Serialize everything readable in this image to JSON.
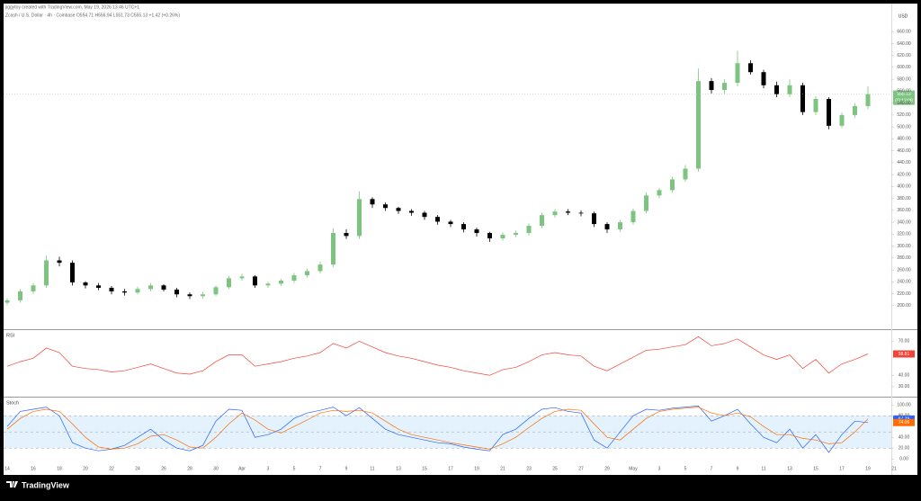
{
  "header": {
    "credit": "jiggytoy created with TradingView.com, May 19, 2026 13:46 UTC+1",
    "legend": "Zcash / U.S. Dollar · 4h · Coinbase  O554.71 H556.94 L551.73 C555.13 +1.42 (+0.26%)",
    "currency": "USD",
    "countdown": "03:13:08",
    "brand": "TradingView"
  },
  "chart_data": [
    {
      "type": "candlestick",
      "up_color": "#7cc47f",
      "down_color": "#000000",
      "last_line_color": "#bdbdbd",
      "ylim": [
        162,
        695
      ],
      "yticks": [
        {
          "value": 200,
          "label": "200.00"
        },
        {
          "value": 220,
          "label": "220.00"
        },
        {
          "value": 240,
          "label": "240.00"
        },
        {
          "value": 260,
          "label": "260.00"
        },
        {
          "value": 280,
          "label": "280.00"
        },
        {
          "value": 300,
          "label": "300.00"
        },
        {
          "value": 320,
          "label": "320.00"
        },
        {
          "value": 340,
          "label": "340.00"
        },
        {
          "value": 360,
          "label": "360.00"
        },
        {
          "value": 380,
          "label": "380.00"
        },
        {
          "value": 400,
          "label": "400.00"
        },
        {
          "value": 420,
          "label": "420.00"
        },
        {
          "value": 440,
          "label": "440.00"
        },
        {
          "value": 460,
          "label": "460.00"
        },
        {
          "value": 480,
          "label": "480.00"
        },
        {
          "value": 500,
          "label": "500.00"
        },
        {
          "value": 520,
          "label": "520.00"
        },
        {
          "value": 540,
          "label": "540.00"
        },
        {
          "value": 560,
          "label": "560.00"
        },
        {
          "value": 580,
          "label": "580.00"
        },
        {
          "value": 600,
          "label": "600.00"
        },
        {
          "value": 620,
          "label": "620.00"
        },
        {
          "value": 640,
          "label": "640.00"
        },
        {
          "value": 660,
          "label": "660.00"
        }
      ],
      "open": [
        205,
        209,
        224,
        234,
        276,
        272,
        239,
        234,
        230,
        224,
        222,
        228,
        234,
        227,
        219,
        216,
        219,
        231,
        246,
        249,
        234,
        237,
        242,
        251,
        258,
        269,
        322,
        317,
        379,
        370,
        364,
        359,
        356,
        349,
        341,
        337,
        328,
        322,
        313,
        319,
        322,
        334,
        352,
        358,
        356,
        355,
        337,
        328,
        340,
        359,
        385,
        394,
        412,
        430,
        577,
        562,
        574,
        607,
        592,
        570,
        555,
        570,
        525,
        547,
        502,
        520,
        535
      ],
      "high": [
        212,
        228,
        238,
        284,
        282,
        276,
        241,
        238,
        233,
        228,
        232,
        238,
        236,
        230,
        222,
        223,
        234,
        250,
        254,
        251,
        240,
        245,
        255,
        262,
        274,
        330,
        328,
        392,
        382,
        373,
        366,
        362,
        359,
        352,
        344,
        340,
        331,
        324,
        323,
        326,
        338,
        356,
        362,
        362,
        360,
        358,
        340,
        344,
        363,
        390,
        398,
        416,
        436,
        598,
        582,
        580,
        628,
        612,
        596,
        576,
        580,
        574,
        552,
        550,
        524,
        540,
        568
      ],
      "low": [
        201,
        205,
        220,
        230,
        266,
        234,
        229,
        226,
        219,
        217,
        219,
        224,
        224,
        214,
        211,
        212,
        216,
        228,
        242,
        230,
        230,
        233,
        238,
        247,
        254,
        265,
        312,
        312,
        364,
        359,
        354,
        351,
        344,
        336,
        332,
        323,
        316,
        307,
        309,
        315,
        318,
        330,
        348,
        352,
        350,
        332,
        322,
        324,
        336,
        355,
        380,
        390,
        408,
        425,
        556,
        555,
        568,
        588,
        565,
        550,
        550,
        520,
        520,
        496,
        498,
        515,
        530
      ],
      "close": [
        209,
        224,
        234,
        276,
        272,
        239,
        234,
        230,
        224,
        222,
        228,
        234,
        227,
        219,
        216,
        219,
        231,
        246,
        249,
        234,
        237,
        242,
        251,
        258,
        269,
        322,
        317,
        379,
        370,
        364,
        359,
        356,
        349,
        341,
        337,
        328,
        322,
        313,
        319,
        322,
        334,
        352,
        358,
        356,
        355,
        337,
        328,
        340,
        359,
        385,
        394,
        412,
        430,
        577,
        562,
        574,
        607,
        592,
        570,
        555,
        570,
        525,
        547,
        502,
        520,
        535,
        555.13
      ]
    },
    {
      "type": "line",
      "title": "RSI",
      "ylim": [
        22,
        79
      ],
      "yticks": [
        {
          "value": 30,
          "label": "30.00"
        },
        {
          "value": 40,
          "label": "40.00"
        },
        {
          "value": 70,
          "label": "70.00"
        }
      ],
      "series": [
        {
          "name": "RSI",
          "color": "#f44336",
          "values": [
            48,
            52,
            55,
            64,
            60,
            48,
            46,
            45,
            43,
            44,
            47,
            50,
            46,
            42,
            41,
            44,
            52,
            58,
            58,
            48,
            50,
            52,
            55,
            57,
            60,
            68,
            64,
            70,
            65,
            60,
            57,
            55,
            52,
            49,
            47,
            44,
            42,
            40,
            45,
            47,
            52,
            58,
            60,
            58,
            57,
            48,
            44,
            50,
            56,
            62,
            63,
            65,
            67,
            74,
            66,
            68,
            72,
            65,
            58,
            54,
            58,
            46,
            54,
            42,
            50,
            54,
            58.81
          ]
        }
      ]
    },
    {
      "type": "line",
      "title": "Stoch",
      "ylim": [
        -8,
        112
      ],
      "band": [
        20,
        80
      ],
      "band_color": "#e3f2fd",
      "hlines": [
        20,
        50,
        80
      ],
      "yticks": [
        {
          "value": 0,
          "label": "0.00"
        },
        {
          "value": 20,
          "label": "20.00"
        },
        {
          "value": 40,
          "label": "40.00"
        },
        {
          "value": 80,
          "label": "80.00"
        },
        {
          "value": 100,
          "label": "100.00"
        }
      ],
      "xticks": [
        "14",
        "16",
        "18",
        "20",
        "22",
        "24",
        "26",
        "28",
        "30",
        "Apr",
        "3",
        "5",
        "7",
        "9",
        "11",
        "13",
        "15",
        "17",
        "19",
        "21",
        "23",
        "25",
        "27",
        "29",
        "May",
        "3",
        "5",
        "7",
        "9",
        "11",
        "13",
        "15",
        "17",
        "19",
        "21"
      ],
      "series": [
        {
          "name": "%K",
          "color": "#2962ff",
          "values": [
            60,
            88,
            92,
            96,
            80,
            30,
            20,
            15,
            18,
            25,
            40,
            55,
            35,
            20,
            15,
            25,
            70,
            92,
            90,
            40,
            45,
            55,
            75,
            85,
            90,
            96,
            80,
            95,
            75,
            55,
            45,
            40,
            35,
            30,
            28,
            22,
            18,
            15,
            45,
            55,
            75,
            92,
            95,
            88,
            85,
            35,
            20,
            50,
            80,
            92,
            90,
            94,
            96,
            98,
            70,
            80,
            92,
            65,
            40,
            30,
            55,
            20,
            45,
            12,
            45,
            70,
            67.29
          ]
        },
        {
          "name": "%D",
          "color": "#ff6d00",
          "values": [
            55,
            75,
            88,
            92,
            88,
            65,
            40,
            22,
            18,
            20,
            28,
            42,
            45,
            35,
            22,
            20,
            40,
            65,
            85,
            72,
            55,
            48,
            60,
            72,
            85,
            90,
            88,
            90,
            85,
            70,
            55,
            45,
            40,
            35,
            30,
            26,
            22,
            18,
            28,
            40,
            58,
            75,
            88,
            92,
            90,
            65,
            40,
            35,
            55,
            75,
            88,
            92,
            94,
            96,
            85,
            80,
            85,
            78,
            60,
            45,
            45,
            38,
            35,
            28,
            30,
            50,
            74.06
          ]
        }
      ]
    }
  ]
}
